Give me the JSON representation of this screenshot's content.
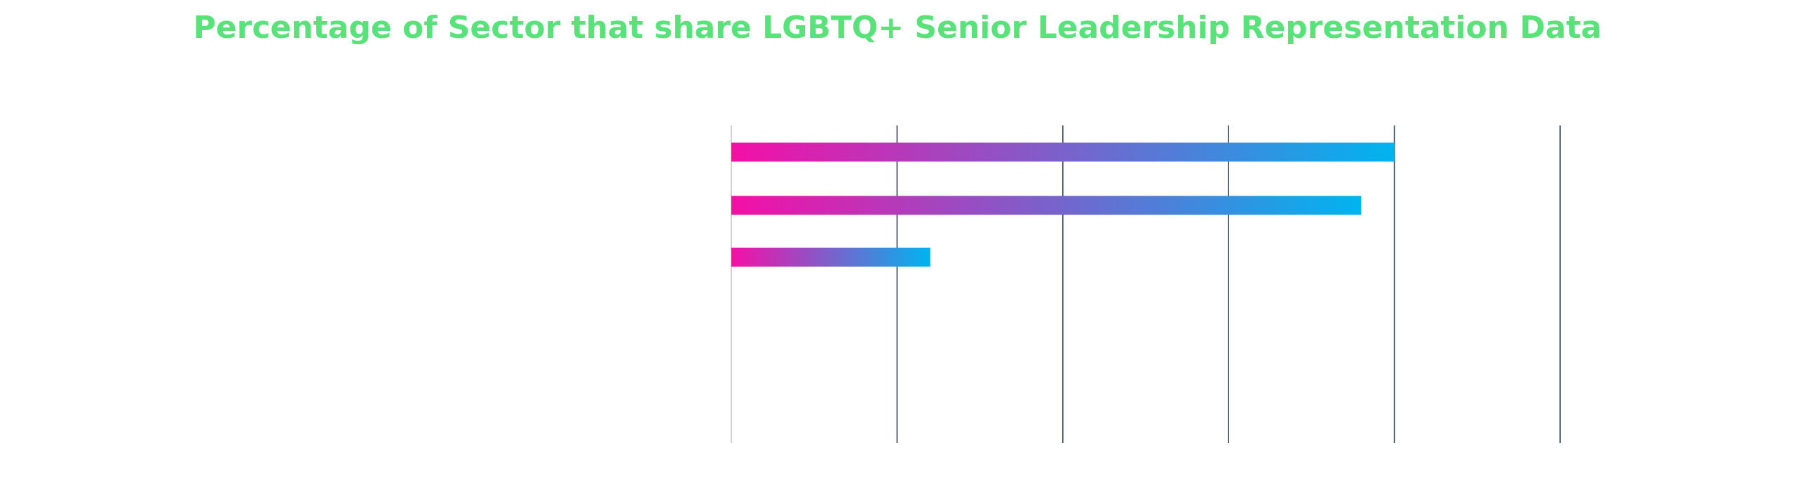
{
  "chart_data": {
    "type": "bar",
    "orientation": "horizontal",
    "title": "Percentage of Sector that share LGBTQ+ Senior Leadership Representation Data",
    "xlabel": "",
    "ylabel": "",
    "categories": [
      "",
      "",
      "",
      "",
      ""
    ],
    "values": [
      40,
      38,
      12,
      null,
      null
    ],
    "xlim": [
      0,
      50
    ],
    "gridlines": [
      0,
      10,
      20,
      30,
      40,
      50
    ],
    "grid": true,
    "legend": "none",
    "gradient": [
      "#f40fa7",
      "#00b4ef"
    ]
  },
  "colors": {
    "title": "#59e27a",
    "gridline": "#34465e",
    "baseline": "#cfcfd6",
    "bar_start": "#f40fa7",
    "bar_end": "#00b4ef"
  }
}
